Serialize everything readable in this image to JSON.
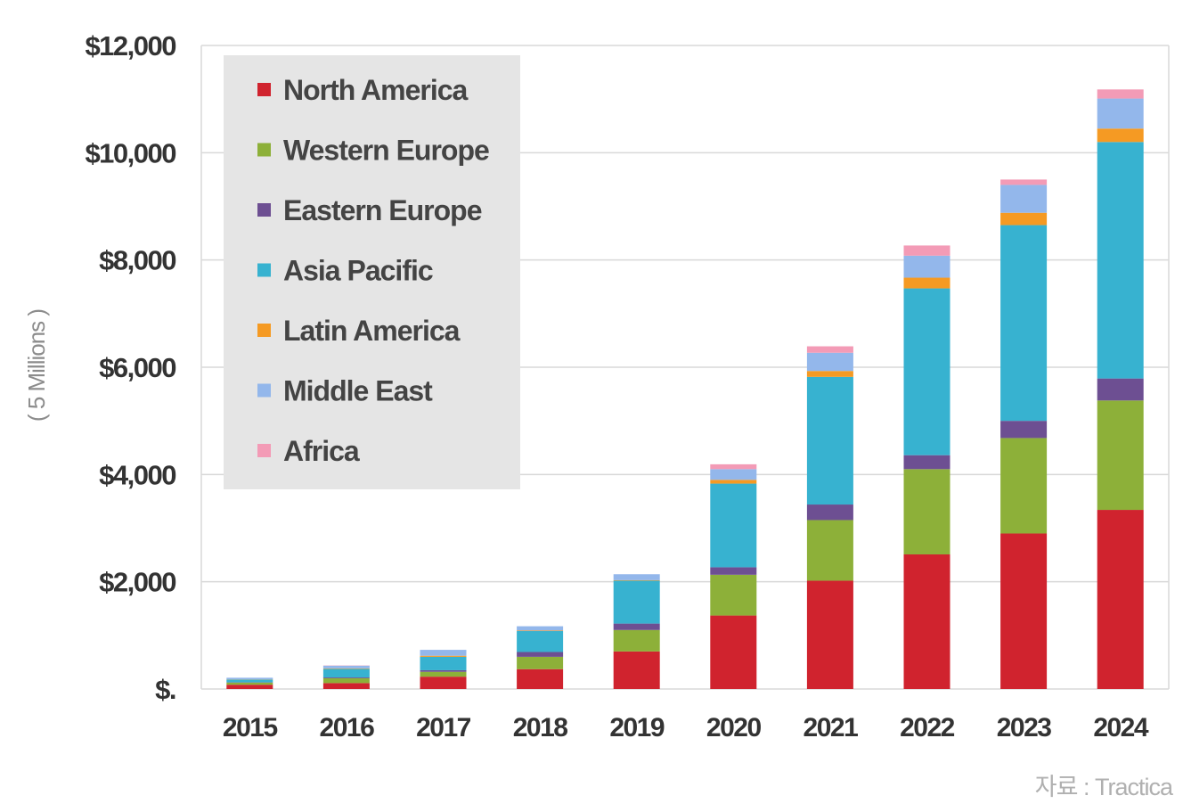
{
  "chart_data": {
    "type": "bar",
    "stacked": true,
    "title": "",
    "xlabel": "",
    "ylabel": "( 5 Millions )",
    "ylim": [
      0,
      12000
    ],
    "yticks": [
      0,
      2000,
      4000,
      6000,
      8000,
      10000,
      12000
    ],
    "ytick_labels": [
      "$.",
      "$2,000",
      "$4,000",
      "$6,000",
      "$8,000",
      "$10,000",
      "$12,000"
    ],
    "categories": [
      "2015",
      "2016",
      "2017",
      "2018",
      "2019",
      "2020",
      "2021",
      "2022",
      "2023",
      "2024"
    ],
    "series": [
      {
        "name": "North America",
        "color": "#d0232e",
        "values": [
          80,
          110,
          230,
          370,
          700,
          1370,
          2020,
          2510,
          2900,
          3340
        ]
      },
      {
        "name": "Western Europe",
        "color": "#8db039",
        "values": [
          40,
          90,
          90,
          230,
          400,
          760,
          1130,
          1590,
          1780,
          2040
        ]
      },
      {
        "name": "Eastern Europe",
        "color": "#6d4f92",
        "values": [
          5,
          15,
          30,
          90,
          120,
          140,
          290,
          260,
          320,
          410
        ]
      },
      {
        "name": "Asia Pacific",
        "color": "#37b2d0",
        "values": [
          50,
          160,
          250,
          390,
          800,
          1560,
          2380,
          3110,
          3650,
          4410
        ]
      },
      {
        "name": "Latin America",
        "color": "#f59a23",
        "values": [
          5,
          10,
          20,
          10,
          10,
          70,
          110,
          200,
          230,
          250
        ]
      },
      {
        "name": "Middle East",
        "color": "#93b7eb",
        "values": [
          30,
          50,
          110,
          80,
          110,
          200,
          340,
          410,
          520,
          560
        ]
      },
      {
        "name": "Africa",
        "color": "#f39bb6",
        "values": [
          0,
          5,
          0,
          0,
          0,
          90,
          120,
          190,
          100,
          170
        ]
      }
    ],
    "legend_position": "top-left",
    "grid": true
  },
  "source_text": "자료 : Tractica"
}
